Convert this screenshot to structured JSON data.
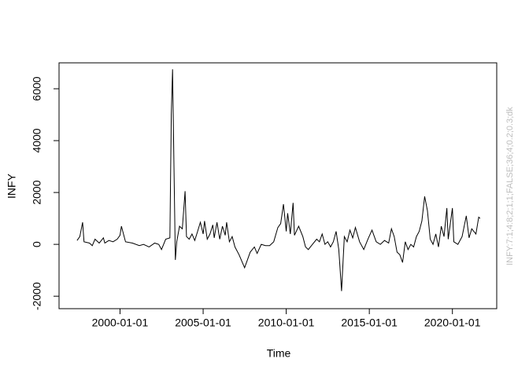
{
  "chart_data": {
    "type": "line",
    "x_label": "Time",
    "y_label": "INFY",
    "annotation": "INFY:7:1;4:8;2;1;1;FALSE;36;4;0.2;0.3;dk",
    "xlim": [
      "1996-05-01",
      "2022-09-01"
    ],
    "ylim": [
      -2480,
      7000
    ],
    "xticks": [
      "2000-01-01",
      "2005-01-01",
      "2010-01-01",
      "2015-01-01",
      "2020-01-01"
    ],
    "yticks": [
      -2000,
      0,
      2000,
      4000,
      6000
    ],
    "series": [
      {
        "name": "INFY",
        "color": "#000000",
        "x": [
          "1997-06-01",
          "1997-08-01",
          "1997-10-01",
          "1997-11-01",
          "1998-03-01",
          "1998-05-01",
          "1998-07-01",
          "1998-10-01",
          "1999-01-01",
          "1999-02-01",
          "1999-05-01",
          "1999-08-01",
          "1999-11-01",
          "2000-01-01",
          "2000-02-01",
          "2000-04-01",
          "2000-05-01",
          "2000-10-01",
          "2001-03-01",
          "2001-06-01",
          "2001-10-01",
          "2002-02-01",
          "2002-05-01",
          "2002-07-01",
          "2002-10-01",
          "2003-01-01",
          "2003-02-01",
          "2003-03-01",
          "2003-04-01",
          "2003-05-01",
          "2003-06-01",
          "2003-08-01",
          "2003-10-01",
          "2003-12-01",
          "2004-01-01",
          "2004-03-01",
          "2004-05-01",
          "2004-07-01",
          "2004-09-01",
          "2004-11-01",
          "2005-01-01",
          "2005-02-01",
          "2005-04-01",
          "2005-06-01",
          "2005-08-01",
          "2005-09-01",
          "2005-11-01",
          "2006-01-01",
          "2006-03-01",
          "2006-05-01",
          "2006-06-01",
          "2006-08-01",
          "2006-10-01",
          "2006-12-01",
          "2007-03-01",
          "2007-07-01",
          "2007-09-01",
          "2007-11-01",
          "2008-02-01",
          "2008-04-01",
          "2008-07-01",
          "2008-10-01",
          "2009-01-01",
          "2009-04-01",
          "2009-07-01",
          "2009-09-01",
          "2009-11-01",
          "2010-01-01",
          "2010-02-01",
          "2010-04-01",
          "2010-06-01",
          "2010-07-01",
          "2010-10-01",
          "2011-01-01",
          "2011-03-01",
          "2011-05-01",
          "2011-08-01",
          "2011-11-01",
          "2012-01-01",
          "2012-03-01",
          "2012-05-01",
          "2012-07-01",
          "2012-09-01",
          "2012-11-01",
          "2013-01-01",
          "2013-03-01",
          "2013-05-01",
          "2013-07-01",
          "2013-09-01",
          "2013-11-01",
          "2014-01-01",
          "2014-03-01",
          "2014-06-01",
          "2014-09-01",
          "2014-12-01",
          "2015-03-01",
          "2015-06-01",
          "2015-09-01",
          "2015-12-01",
          "2016-03-01",
          "2016-05-01",
          "2016-07-01",
          "2016-09-01",
          "2016-11-01",
          "2017-01-01",
          "2017-03-01",
          "2017-05-01",
          "2017-07-01",
          "2017-09-01",
          "2017-11-01",
          "2018-01-01",
          "2018-03-01",
          "2018-05-01",
          "2018-07-01",
          "2018-09-01",
          "2018-11-01",
          "2019-01-01",
          "2019-03-01",
          "2019-05-01",
          "2019-07-01",
          "2019-09-01",
          "2019-10-01",
          "2020-01-01",
          "2020-02-01",
          "2020-05-01",
          "2020-08-01",
          "2020-11-01",
          "2021-01-01",
          "2021-03-01",
          "2021-06-01",
          "2021-08-01",
          "2021-09-01"
        ],
        "values": [
          150,
          300,
          850,
          100,
          50,
          -50,
          200,
          50,
          250,
          50,
          150,
          100,
          200,
          350,
          700,
          300,
          100,
          50,
          -50,
          0,
          -100,
          50,
          0,
          -200,
          200,
          250,
          5000,
          6750,
          3000,
          -600,
          100,
          700,
          600,
          2050,
          300,
          200,
          400,
          150,
          500,
          850,
          400,
          900,
          200,
          400,
          750,
          250,
          850,
          200,
          700,
          350,
          850,
          100,
          300,
          -100,
          -400,
          -900,
          -600,
          -300,
          -100,
          -350,
          0,
          -50,
          -50,
          100,
          650,
          800,
          1550,
          500,
          1200,
          400,
          1600,
          350,
          700,
          300,
          -100,
          -200,
          0,
          200,
          100,
          400,
          0,
          100,
          -100,
          100,
          500,
          -200,
          -1800,
          300,
          100,
          550,
          250,
          650,
          100,
          -200,
          200,
          550,
          100,
          0,
          150,
          50,
          600,
          300,
          -300,
          -400,
          -700,
          100,
          -200,
          0,
          -100,
          300,
          500,
          900,
          1850,
          1300,
          200,
          0,
          400,
          -100,
          700,
          300,
          1400,
          200,
          1400,
          100,
          0,
          300,
          1100,
          250,
          600,
          400,
          1050,
          1000
        ]
      }
    ]
  }
}
